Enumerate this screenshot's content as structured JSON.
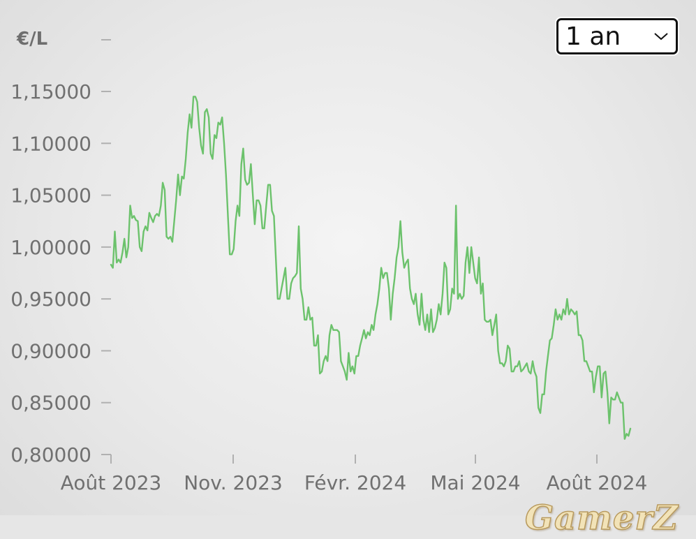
{
  "range_selector": {
    "value": "1 an",
    "icon": "chevron-down-icon"
  },
  "watermark": {
    "text": "GamerZ"
  },
  "chart_data": {
    "type": "line",
    "y_unit": "€/L",
    "ylim": [
      0.8,
      1.15
    ],
    "y_ticks": [
      "1,15000",
      "1,10000",
      "1,05000",
      "1,00000",
      "0,95000",
      "0,90000",
      "0,85000",
      "0,80000"
    ],
    "x_ticks": [
      "Août 2023",
      "Nov. 2023",
      "Févr. 2024",
      "Mai 2024",
      "Août 2024"
    ],
    "grid": false,
    "line_color": "#6cc26c",
    "series": [
      {
        "values": [
          0.983,
          0.98,
          1.015,
          0.985,
          0.988,
          0.985,
          0.995,
          1.008,
          0.99,
          1.0,
          1.04,
          1.028,
          1.03,
          1.026,
          1.025,
          1.0,
          0.996,
          1.015,
          1.02,
          1.016,
          1.033,
          1.028,
          1.024,
          1.03,
          1.032,
          1.03,
          1.04,
          1.062,
          1.055,
          1.01,
          1.008,
          1.01,
          1.005,
          1.025,
          1.045,
          1.07,
          1.05,
          1.068,
          1.066,
          1.085,
          1.11,
          1.128,
          1.115,
          1.145,
          1.145,
          1.14,
          1.115,
          1.098,
          1.09,
          1.13,
          1.133,
          1.125,
          1.09,
          1.085,
          1.108,
          1.105,
          1.12,
          1.118,
          1.125,
          1.1,
          1.07,
          1.03,
          0.993,
          0.993,
          0.998,
          1.025,
          1.04,
          1.03,
          1.08,
          1.095,
          1.065,
          1.06,
          1.062,
          1.08,
          1.05,
          1.022,
          1.045,
          1.045,
          1.04,
          1.018,
          1.018,
          1.04,
          1.06,
          1.06,
          1.035,
          1.03,
          0.99,
          0.95,
          0.95,
          0.96,
          0.97,
          0.98,
          0.95,
          0.95,
          0.965,
          0.97,
          0.972,
          0.975,
          1.02,
          0.96,
          0.95,
          0.93,
          0.93,
          0.942,
          0.93,
          0.932,
          0.905,
          0.905,
          0.915,
          0.878,
          0.88,
          0.89,
          0.895,
          0.89,
          0.915,
          0.925,
          0.92,
          0.92,
          0.92,
          0.918,
          0.89,
          0.885,
          0.88,
          0.872,
          0.898,
          0.88,
          0.885,
          0.878,
          0.895,
          0.895,
          0.905,
          0.912,
          0.92,
          0.912,
          0.918,
          0.915,
          0.925,
          0.92,
          0.935,
          0.945,
          0.96,
          0.98,
          0.97,
          0.975,
          0.975,
          0.96,
          0.93,
          0.955,
          0.97,
          0.99,
          1.0,
          1.025,
          0.995,
          0.98,
          0.985,
          0.988,
          0.96,
          0.95,
          0.945,
          0.955,
          0.935,
          0.925,
          0.955,
          0.93,
          0.92,
          0.935,
          0.918,
          0.94,
          0.918,
          0.922,
          0.93,
          0.945,
          0.935,
          0.955,
          0.985,
          0.98,
          0.935,
          0.94,
          0.96,
          0.955,
          1.04,
          0.95,
          0.955,
          0.95,
          0.953,
          0.985,
          1.0,
          0.975,
          1.0,
          0.985,
          0.97,
          0.965,
          0.99,
          0.955,
          0.965,
          0.93,
          0.928,
          0.928,
          0.93,
          0.915,
          0.925,
          0.935,
          0.9,
          0.888,
          0.888,
          0.885,
          0.89,
          0.905,
          0.902,
          0.88,
          0.88,
          0.885,
          0.885,
          0.89,
          0.88,
          0.882,
          0.885,
          0.888,
          0.88,
          0.878,
          0.89,
          0.88,
          0.875,
          0.845,
          0.84,
          0.858,
          0.858,
          0.88,
          0.895,
          0.91,
          0.912,
          0.925,
          0.94,
          0.93,
          0.935,
          0.93,
          0.94,
          0.935,
          0.95,
          0.935,
          0.94,
          0.938,
          0.935,
          0.938,
          0.915,
          0.915,
          0.91,
          0.89,
          0.89,
          0.885,
          0.88,
          0.88,
          0.86,
          0.875,
          0.885,
          0.885,
          0.855,
          0.878,
          0.88,
          0.86,
          0.83,
          0.855,
          0.853,
          0.853,
          0.86,
          0.855,
          0.85,
          0.85,
          0.815,
          0.82,
          0.818,
          0.825
        ]
      }
    ]
  }
}
